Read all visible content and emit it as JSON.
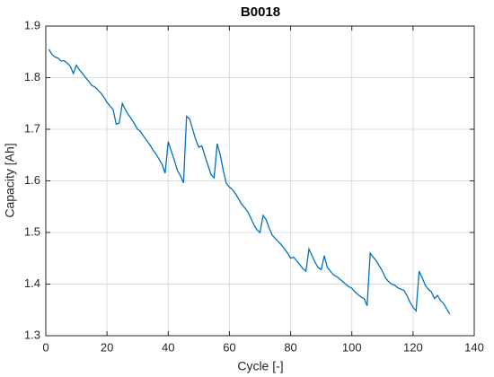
{
  "chart_data": {
    "type": "line",
    "title": "B0018",
    "x_label": "Cycle [-]",
    "y_label": "Capacity [Ah]",
    "x": [
      1,
      2,
      3,
      4,
      5,
      6,
      7,
      8,
      9,
      10,
      11,
      12,
      13,
      14,
      15,
      16,
      17,
      18,
      19,
      20,
      21,
      22,
      23,
      24,
      25,
      26,
      27,
      28,
      29,
      30,
      31,
      32,
      33,
      34,
      35,
      36,
      37,
      38,
      39,
      40,
      41,
      42,
      43,
      44,
      45,
      46,
      47,
      48,
      49,
      50,
      51,
      52,
      53,
      54,
      55,
      56,
      57,
      58,
      59,
      60,
      61,
      62,
      63,
      64,
      65,
      66,
      67,
      68,
      69,
      70,
      71,
      72,
      73,
      74,
      75,
      76,
      77,
      78,
      79,
      80,
      81,
      82,
      83,
      84,
      85,
      86,
      87,
      88,
      89,
      90,
      91,
      92,
      93,
      94,
      95,
      96,
      97,
      98,
      99,
      100,
      101,
      102,
      103,
      104,
      105,
      106,
      107,
      108,
      109,
      110,
      111,
      112,
      113,
      114,
      115,
      116,
      117,
      118,
      119,
      120,
      121,
      122,
      123,
      124,
      125,
      126,
      127,
      128,
      129,
      130,
      131,
      132
    ],
    "values": [
      1.855,
      1.845,
      1.84,
      1.838,
      1.832,
      1.833,
      1.828,
      1.822,
      1.808,
      1.824,
      1.815,
      1.808,
      1.8,
      1.793,
      1.785,
      1.782,
      1.776,
      1.77,
      1.762,
      1.752,
      1.745,
      1.738,
      1.71,
      1.712,
      1.75,
      1.738,
      1.728,
      1.72,
      1.71,
      1.7,
      1.695,
      1.686,
      1.678,
      1.67,
      1.66,
      1.652,
      1.642,
      1.632,
      1.615,
      1.676,
      1.658,
      1.64,
      1.62,
      1.61,
      1.596,
      1.725,
      1.72,
      1.7,
      1.68,
      1.665,
      1.668,
      1.648,
      1.63,
      1.612,
      1.606,
      1.672,
      1.65,
      1.62,
      1.595,
      1.588,
      1.583,
      1.575,
      1.565,
      1.555,
      1.548,
      1.54,
      1.528,
      1.515,
      1.505,
      1.5,
      1.533,
      1.525,
      1.508,
      1.495,
      1.488,
      1.482,
      1.476,
      1.468,
      1.46,
      1.45,
      1.452,
      1.445,
      1.438,
      1.43,
      1.425,
      1.468,
      1.455,
      1.442,
      1.432,
      1.428,
      1.455,
      1.432,
      1.425,
      1.418,
      1.415,
      1.41,
      1.405,
      1.4,
      1.395,
      1.392,
      1.385,
      1.38,
      1.375,
      1.372,
      1.358,
      1.46,
      1.452,
      1.445,
      1.435,
      1.425,
      1.412,
      1.405,
      1.4,
      1.398,
      1.393,
      1.39,
      1.388,
      1.378,
      1.365,
      1.355,
      1.348,
      1.425,
      1.412,
      1.398,
      1.39,
      1.385,
      1.372,
      1.378,
      1.368,
      1.362,
      1.352,
      1.342
    ],
    "color": "#0072bd",
    "xlim": [
      0,
      140
    ],
    "xticks": [
      0,
      20,
      40,
      60,
      80,
      100,
      120,
      140
    ],
    "ylim": [
      1.3,
      1.9
    ],
    "yticks": [
      1.3,
      1.4,
      1.5,
      1.6,
      1.7,
      1.8,
      1.9
    ],
    "grid": true
  }
}
